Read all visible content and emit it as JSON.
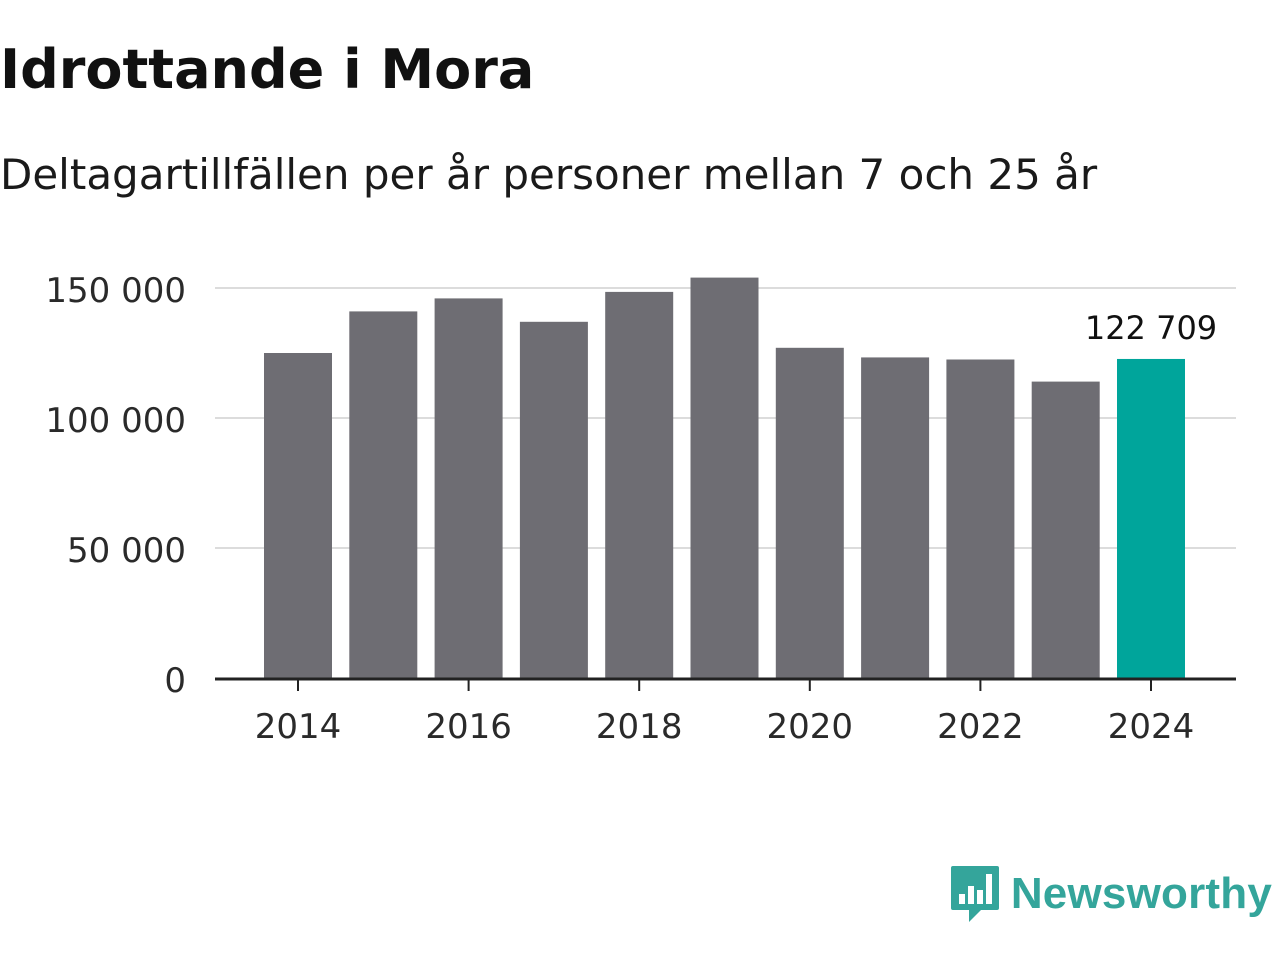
{
  "header": {
    "title": "Idrottande i Mora",
    "subtitle": "Deltagartillfällen per år personer mellan 7 och 25 år"
  },
  "brand": {
    "name": "Newsworthy",
    "color": "#34a59b"
  },
  "colors": {
    "bar": "#6e6d73",
    "highlight": "#00a59b",
    "grid": "#dcdcdc",
    "axis": "#222222",
    "text": "#2a2a2a"
  },
  "chart_data": {
    "type": "bar",
    "title": "Idrottande i Mora",
    "subtitle": "Deltagartillfällen per år personer mellan 7 och 25 år",
    "xlabel": "",
    "ylabel": "",
    "x": [
      2014,
      2015,
      2016,
      2017,
      2018,
      2019,
      2020,
      2021,
      2022,
      2023,
      2024
    ],
    "values": [
      125000,
      141000,
      146000,
      137000,
      148500,
      154000,
      127000,
      123300,
      122500,
      114000,
      122709
    ],
    "highlight_index": 10,
    "highlight_label": "122 709",
    "ylim": [
      0,
      160000
    ],
    "yticks": [
      0,
      50000,
      100000,
      150000
    ],
    "ytick_labels": [
      "0",
      "50 000",
      "100 000",
      "150 000"
    ],
    "xticks": [
      2014,
      2016,
      2018,
      2020,
      2022,
      2024
    ],
    "xtick_labels": [
      "2014",
      "2016",
      "2018",
      "2020",
      "2022",
      "2024"
    ],
    "grid": true,
    "legend": "none"
  }
}
